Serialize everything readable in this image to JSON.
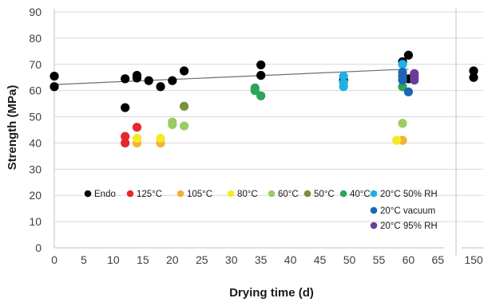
{
  "chart_data": {
    "type": "scatter",
    "xlabel": "Drying time (d)",
    "ylabel": "Strength (MPa)",
    "ylim": [
      0,
      90
    ],
    "y_ticks": [
      "0",
      "10",
      "20",
      "30",
      "40",
      "50",
      "60",
      "70",
      "80",
      "90"
    ],
    "x_ticks": [
      "0",
      "5",
      "10",
      "15",
      "20",
      "25",
      "30",
      "35",
      "40",
      "45",
      "50",
      "55",
      "60",
      "65",
      "150"
    ],
    "x_axis_break": {
      "main_range": [
        0,
        66
      ],
      "extra_tick": "150"
    },
    "gridlines": "horizontal",
    "legend_position": "inside-bottom",
    "trendline": {
      "series": "Endo",
      "x": [
        0,
        60
      ],
      "y": [
        62.3,
        68.2
      ],
      "color": "#6e6e6e"
    },
    "series": [
      {
        "name": "Endo",
        "color": "#000000",
        "points": [
          {
            "x": 0,
            "y": 65.5
          },
          {
            "x": 0,
            "y": 61.5
          },
          {
            "x": 12,
            "y": 64.5
          },
          {
            "x": 12,
            "y": 53.5
          },
          {
            "x": 14,
            "y": 65.8
          },
          {
            "x": 14,
            "y": 64.8
          },
          {
            "x": 16,
            "y": 63.8
          },
          {
            "x": 18,
            "y": 61.5
          },
          {
            "x": 20,
            "y": 63.8
          },
          {
            "x": 22,
            "y": 67.5
          },
          {
            "x": 35,
            "y": 69.8
          },
          {
            "x": 35,
            "y": 65.8
          },
          {
            "x": 49,
            "y": 64.0
          },
          {
            "x": 59,
            "y": 71.0
          },
          {
            "x": 60,
            "y": 73.5
          },
          {
            "x": 60,
            "y": 64.5
          },
          {
            "x": 150,
            "y": 67.5
          },
          {
            "x": 150,
            "y": 65.0
          }
        ]
      },
      {
        "name": "125°C",
        "color": "#e8262b",
        "points": [
          {
            "x": 12,
            "y": 42.5
          },
          {
            "x": 12,
            "y": 40.0
          },
          {
            "x": 14,
            "y": 46.0
          }
        ]
      },
      {
        "name": "105°C",
        "color": "#f2b233",
        "points": [
          {
            "x": 14,
            "y": 40.0
          },
          {
            "x": 18,
            "y": 40.0
          },
          {
            "x": 59,
            "y": 41.0
          }
        ]
      },
      {
        "name": "80°C",
        "color": "#f5ea24",
        "points": [
          {
            "x": 14,
            "y": 41.8
          },
          {
            "x": 18,
            "y": 41.8
          },
          {
            "x": 58,
            "y": 41.0
          }
        ]
      },
      {
        "name": "60°C",
        "color": "#9bcc62",
        "points": [
          {
            "x": 20,
            "y": 48.0
          },
          {
            "x": 20,
            "y": 47.0
          },
          {
            "x": 22,
            "y": 46.5
          },
          {
            "x": 59,
            "y": 47.5
          }
        ]
      },
      {
        "name": "50°C",
        "color": "#77923a",
        "points": [
          {
            "x": 22,
            "y": 54.0
          }
        ]
      },
      {
        "name": "40°C",
        "color": "#2aa55a",
        "points": [
          {
            "x": 34,
            "y": 61.0
          },
          {
            "x": 34,
            "y": 60.0
          },
          {
            "x": 35,
            "y": 58.0
          },
          {
            "x": 59,
            "y": 61.5
          }
        ]
      },
      {
        "name": "20°C 50% RH",
        "color": "#1fb0e6",
        "points": [
          {
            "x": 49,
            "y": 65.5
          },
          {
            "x": 49,
            "y": 63.0
          },
          {
            "x": 49,
            "y": 61.5
          },
          {
            "x": 59,
            "y": 70.0
          }
        ]
      },
      {
        "name": "20°C vacuum",
        "color": "#1d65b5",
        "points": [
          {
            "x": 59,
            "y": 67.0
          },
          {
            "x": 59,
            "y": 65.5
          },
          {
            "x": 59,
            "y": 64.0
          },
          {
            "x": 60,
            "y": 59.5
          }
        ]
      },
      {
        "name": "20°C 95% RH",
        "color": "#6a3d9a",
        "points": [
          {
            "x": 61,
            "y": 66.5
          },
          {
            "x": 61,
            "y": 65.0
          },
          {
            "x": 61,
            "y": 64.0
          }
        ]
      }
    ]
  }
}
